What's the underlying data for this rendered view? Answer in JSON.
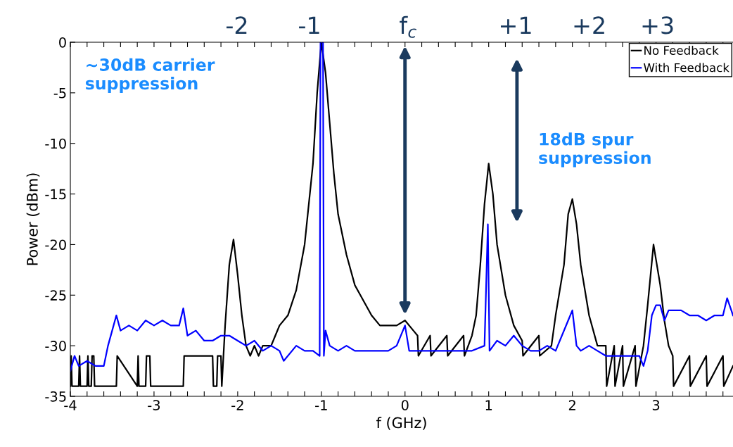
{
  "chart_data": {
    "type": "line",
    "xlabel": "f (GHz)",
    "ylabel": "Power (dBm)",
    "xlim": [
      -4,
      3.92
    ],
    "ylim": [
      -35,
      0
    ],
    "xticks": [
      -4,
      -3,
      -2,
      -1,
      0,
      1,
      2,
      3,
      {
        "value": -3.8,
        "label": null
      },
      {
        "value": -3.6,
        "label": null
      },
      {
        "value": -3.4,
        "label": null
      },
      {
        "value": -3.2,
        "label": null
      },
      {
        "value": -2.8,
        "label": null
      },
      {
        "value": -2.6,
        "label": null
      },
      {
        "value": -2.4,
        "label": null
      },
      {
        "value": -2.2,
        "label": null
      },
      {
        "value": -1.8,
        "label": null
      },
      {
        "value": -1.6,
        "label": null
      },
      {
        "value": -1.4,
        "label": null
      },
      {
        "value": -1.2,
        "label": null
      },
      {
        "value": -0.8,
        "label": null
      },
      {
        "value": -0.6,
        "label": null
      },
      {
        "value": -0.4,
        "label": null
      },
      {
        "value": -0.2,
        "label": null
      },
      {
        "value": 0.2,
        "label": null
      },
      {
        "value": 0.4,
        "label": null
      },
      {
        "value": 0.6,
        "label": null
      },
      {
        "value": 0.8,
        "label": null
      },
      {
        "value": 1.2,
        "label": null
      },
      {
        "value": 1.4,
        "label": null
      },
      {
        "value": 1.6,
        "label": null
      },
      {
        "value": 1.8,
        "label": null
      },
      {
        "value": 2.2,
        "label": null
      },
      {
        "value": 2.4,
        "label": null
      },
      {
        "value": 2.6,
        "label": null
      },
      {
        "value": 2.8,
        "label": null
      },
      {
        "value": 3.2,
        "label": null
      },
      {
        "value": 3.4,
        "label": null
      },
      {
        "value": 3.6,
        "label": null
      },
      {
        "value": 3.8,
        "label": null
      }
    ],
    "yticks": [
      -35,
      -30,
      -25,
      -20,
      -15,
      -10,
      -5,
      0
    ],
    "grid": false,
    "legend": "top right",
    "marker": "none",
    "line_style": "solid",
    "series": [
      {
        "name": "No Feedback",
        "color": "#000000",
        "x": [
          -4,
          -3.99,
          -3.98,
          -3.9,
          -3.89,
          -3.88,
          -3.8,
          -3.79,
          -3.78,
          -3.75,
          -3.74,
          -3.72,
          -3.71,
          -3.45,
          -3.44,
          -3.2,
          -3.19,
          -3.18,
          -3.1,
          -3.09,
          -3.05,
          -3.04,
          -2.65,
          -2.64,
          -2.3,
          -2.29,
          -2.25,
          -2.24,
          -2.2,
          -2.19,
          -2.15,
          -2.1,
          -2.05,
          -2.0,
          -1.95,
          -1.9,
          -1.85,
          -1.8,
          -1.75,
          -1.7,
          -1.6,
          -1.55,
          -1.5,
          -1.4,
          -1.3,
          -1.2,
          -1.1,
          -1.05,
          -1.0,
          -0.95,
          -0.9,
          -0.85,
          -0.8,
          -0.7,
          -0.6,
          -0.5,
          -0.4,
          -0.3,
          -0.2,
          -0.1,
          0,
          0.1,
          0.15,
          0.16,
          0.3,
          0.31,
          0.5,
          0.51,
          0.7,
          0.71,
          0.8,
          0.85,
          0.9,
          0.95,
          1.0,
          1.05,
          1.1,
          1.2,
          1.3,
          1.4,
          1.41,
          1.6,
          1.61,
          1.75,
          1.8,
          1.9,
          1.95,
          2.0,
          2.05,
          2.1,
          2.2,
          2.3,
          2.4,
          2.41,
          2.5,
          2.51,
          2.6,
          2.61,
          2.75,
          2.76,
          2.85,
          2.9,
          2.97,
          3.05,
          3.1,
          3.15,
          3.2,
          3.21,
          3.4,
          3.41,
          3.6,
          3.61,
          3.8,
          3.81,
          3.92
        ],
        "values": [
          -34,
          -31,
          -34,
          -34,
          -31,
          -34,
          -34,
          -31,
          -34,
          -34,
          -31,
          -31,
          -34,
          -34,
          -31,
          -34,
          -31,
          -34,
          -34,
          -31,
          -31,
          -34,
          -34,
          -31,
          -31,
          -34,
          -34,
          -31,
          -31,
          -34,
          -28,
          -22,
          -19.5,
          -23,
          -27,
          -30,
          -31,
          -30,
          -31,
          -30,
          -30,
          -29,
          -28,
          -27,
          -24.5,
          -20,
          -12,
          -5,
          0,
          -3,
          -8,
          -13,
          -17,
          -21,
          -24,
          -25.5,
          -27,
          -28,
          -28,
          -28,
          -27.5,
          -28.5,
          -29,
          -31,
          -29,
          -31,
          -29,
          -31,
          -29,
          -31,
          -29,
          -27,
          -22,
          -16,
          -12,
          -15,
          -20,
          -25,
          -28,
          -29.5,
          -31,
          -29,
          -31,
          -30,
          -27,
          -22,
          -17,
          -15.5,
          -18,
          -22,
          -27,
          -30,
          -30,
          -34,
          -30,
          -34,
          -30,
          -34,
          -30,
          -34,
          -30,
          -26,
          -20,
          -24,
          -27.5,
          -30,
          -31,
          -34,
          -31,
          -34,
          -31,
          -34,
          -31,
          -34,
          -32
        ]
      },
      {
        "name": "With Feedback",
        "color": "#0000ff",
        "x": [
          -4,
          -3.95,
          -3.9,
          -3.8,
          -3.7,
          -3.6,
          -3.55,
          -3.5,
          -3.45,
          -3.4,
          -3.3,
          -3.2,
          -3.1,
          -3.0,
          -2.9,
          -2.8,
          -2.7,
          -2.65,
          -2.6,
          -2.5,
          -2.4,
          -2.3,
          -2.2,
          -2.1,
          -2.0,
          -1.9,
          -1.8,
          -1.7,
          -1.6,
          -1.5,
          -1.45,
          -1.3,
          -1.2,
          -1.1,
          -1.02,
          -1.01,
          -0.98,
          -0.97,
          -0.95,
          -0.9,
          -0.8,
          -0.7,
          -0.6,
          -0.5,
          -0.4,
          -0.3,
          -0.2,
          -0.1,
          0,
          0.05,
          0.1,
          0.2,
          0.3,
          0.4,
          0.5,
          0.6,
          0.7,
          0.8,
          0.95,
          0.99,
          1.01,
          1.1,
          1.2,
          1.3,
          1.4,
          1.5,
          1.6,
          1.7,
          1.8,
          1.95,
          2.0,
          2.05,
          2.1,
          2.2,
          2.3,
          2.4,
          2.5,
          2.6,
          2.7,
          2.8,
          2.85,
          2.9,
          2.95,
          3.0,
          3.05,
          3.1,
          3.15,
          3.2,
          3.3,
          3.4,
          3.5,
          3.6,
          3.7,
          3.8,
          3.85,
          3.9,
          3.92
        ],
        "values": [
          -32.5,
          -31,
          -32,
          -31.5,
          -32,
          -32,
          -30,
          -28.5,
          -27,
          -28.5,
          -28,
          -28.5,
          -27.5,
          -28,
          -27.5,
          -28,
          -28,
          -26.3,
          -29,
          -28.5,
          -29.5,
          -29.5,
          -29,
          -29,
          -29.5,
          -30,
          -29.5,
          -30.5,
          -30,
          -30.5,
          -31.5,
          -30,
          -30.5,
          -30.5,
          -31,
          0,
          0,
          -31,
          -28.5,
          -30,
          -30.5,
          -30,
          -30.5,
          -30.5,
          -30.5,
          -30.5,
          -30.5,
          -30,
          -28,
          -30.5,
          -30.5,
          -30.5,
          -30.5,
          -30.5,
          -30.5,
          -30.5,
          -30.5,
          -30.5,
          -30,
          -18,
          -30.5,
          -29.5,
          -30,
          -29,
          -30,
          -30.5,
          -30.5,
          -30,
          -30.5,
          -27.5,
          -26.5,
          -30,
          -30.5,
          -30,
          -30.5,
          -31,
          -31,
          -31,
          -31,
          -31,
          -32,
          -30.5,
          -27,
          -26,
          -26,
          -27.5,
          -26.5,
          -26.5,
          -26.5,
          -27,
          -27,
          -27.5,
          -27,
          -27,
          -25.3,
          -26.5,
          -27
        ]
      }
    ],
    "annotations": [
      "-2",
      "-1",
      "f$_{c}$",
      "+1",
      "+2",
      "+3",
      "~30dB carrier\nsuppression",
      "18dB spur\nsuppression"
    ]
  }
}
